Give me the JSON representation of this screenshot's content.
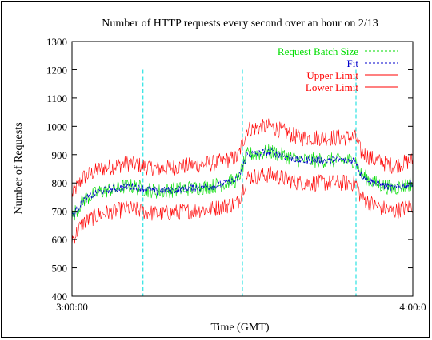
{
  "chart_data": {
    "type": "line",
    "title": "Number of HTTP requests every second over an hour on 2/13",
    "xlabel": "Time (GMT)",
    "ylabel": "Number of Requests",
    "x_ticks": [
      "3:00:00",
      "4:00:0"
    ],
    "x_range_seconds": [
      0,
      3600
    ],
    "ylim": [
      400,
      1300
    ],
    "y_ticks": [
      400,
      500,
      600,
      700,
      800,
      900,
      1000,
      1100,
      1200,
      1300
    ],
    "grid": false,
    "legend_position": "top-right",
    "vertical_markers_seconds": [
      750,
      1800,
      3000
    ],
    "series": [
      {
        "name": "Request Batch Size",
        "color": "#00dd00",
        "style": "dashed",
        "x_seconds": [
          0,
          120,
          300,
          600,
          900,
          1200,
          1500,
          1750,
          1850,
          2100,
          2400,
          2700,
          3000,
          3050,
          3200,
          3400,
          3600
        ],
        "y": [
          680,
          740,
          770,
          790,
          770,
          780,
          790,
          810,
          900,
          910,
          880,
          880,
          880,
          830,
          800,
          780,
          800
        ]
      },
      {
        "name": "Fit",
        "color": "#0000cc",
        "style": "dashed",
        "x_seconds": [
          0,
          120,
          300,
          600,
          900,
          1200,
          1500,
          1750,
          1850,
          2100,
          2400,
          2700,
          3000,
          3050,
          3200,
          3400,
          3600
        ],
        "y": [
          680,
          740,
          770,
          790,
          770,
          780,
          790,
          810,
          900,
          910,
          880,
          880,
          880,
          830,
          800,
          780,
          800
        ]
      },
      {
        "name": "Upper Limit",
        "color": "#ff0000",
        "style": "solid",
        "x_seconds": [
          0,
          120,
          300,
          600,
          900,
          1200,
          1500,
          1750,
          1850,
          2100,
          2400,
          2700,
          3000,
          3050,
          3200,
          3400,
          3600
        ],
        "y": [
          760,
          820,
          850,
          870,
          850,
          860,
          870,
          890,
          990,
          1000,
          960,
          960,
          960,
          910,
          880,
          860,
          880
        ]
      },
      {
        "name": "Lower Limit",
        "color": "#ff0000",
        "style": "solid",
        "x_seconds": [
          0,
          120,
          300,
          600,
          900,
          1200,
          1500,
          1750,
          1850,
          2100,
          2400,
          2700,
          3000,
          3050,
          3200,
          3400,
          3600
        ],
        "y": [
          600,
          660,
          690,
          710,
          690,
          700,
          710,
          730,
          820,
          830,
          800,
          800,
          800,
          750,
          720,
          700,
          720
        ]
      }
    ]
  }
}
